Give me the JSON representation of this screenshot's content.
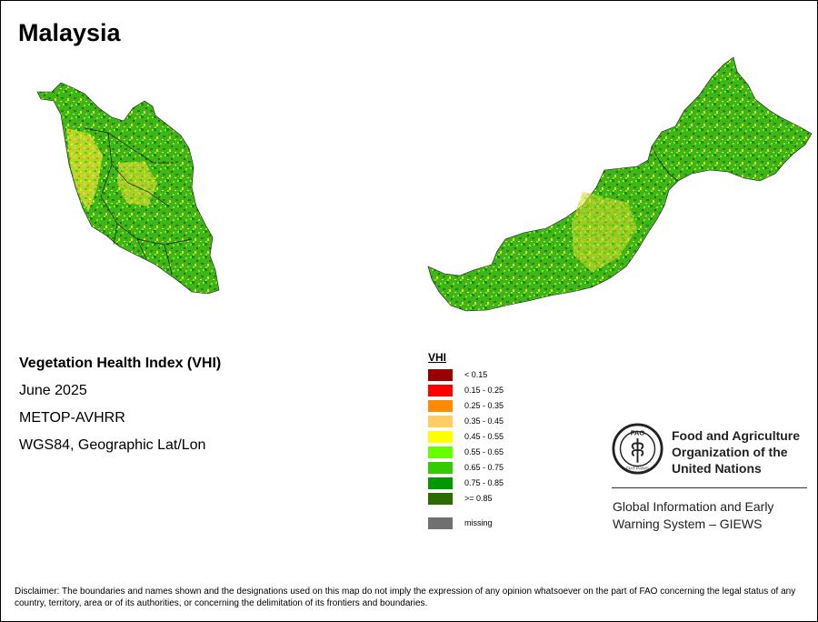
{
  "map_title": "Malaysia",
  "info": {
    "index_name": "Vegetation Health Index (VHI)",
    "period": "June 2025",
    "sensor": "METOP-AVHRR",
    "projection": "WGS84, Geographic Lat/Lon"
  },
  "legend": {
    "title": "VHI",
    "classes": [
      {
        "label": "< 0.15",
        "color": "#990000"
      },
      {
        "label": "0.15 - 0.25",
        "color": "#ff0000"
      },
      {
        "label": "0.25 - 0.35",
        "color": "#ff8c00"
      },
      {
        "label": "0.35 - 0.45",
        "color": "#ffcc66"
      },
      {
        "label": "0.45 - 0.55",
        "color": "#ffff00"
      },
      {
        "label": "0.55 - 0.65",
        "color": "#66ff00"
      },
      {
        "label": "0.65 - 0.75",
        "color": "#33cc00"
      },
      {
        "label": "0.75 - 0.85",
        "color": "#009900"
      },
      {
        "label": ">= 0.85",
        "color": "#2d6b00"
      }
    ],
    "missing": {
      "label": "missing",
      "color": "#707070"
    }
  },
  "logo": {
    "emblem_text_top": "FAO",
    "emblem_text_bottom": "FIAT PANIS",
    "org_line1": "Food and Agriculture",
    "org_line2": "Organization of the",
    "org_line3": "United Nations",
    "system_line1": "Global Information and Early",
    "system_line2": "Warning System – GIEWS"
  },
  "disclaimer": "Disclaimer: The boundaries and names shown and the designations used on this map do not imply the expression of any opinion whatsoever on the part of FAO concerning the legal status of any country, territory, area or of its authorities, or concerning the delimitation of its frontiers and boundaries."
}
